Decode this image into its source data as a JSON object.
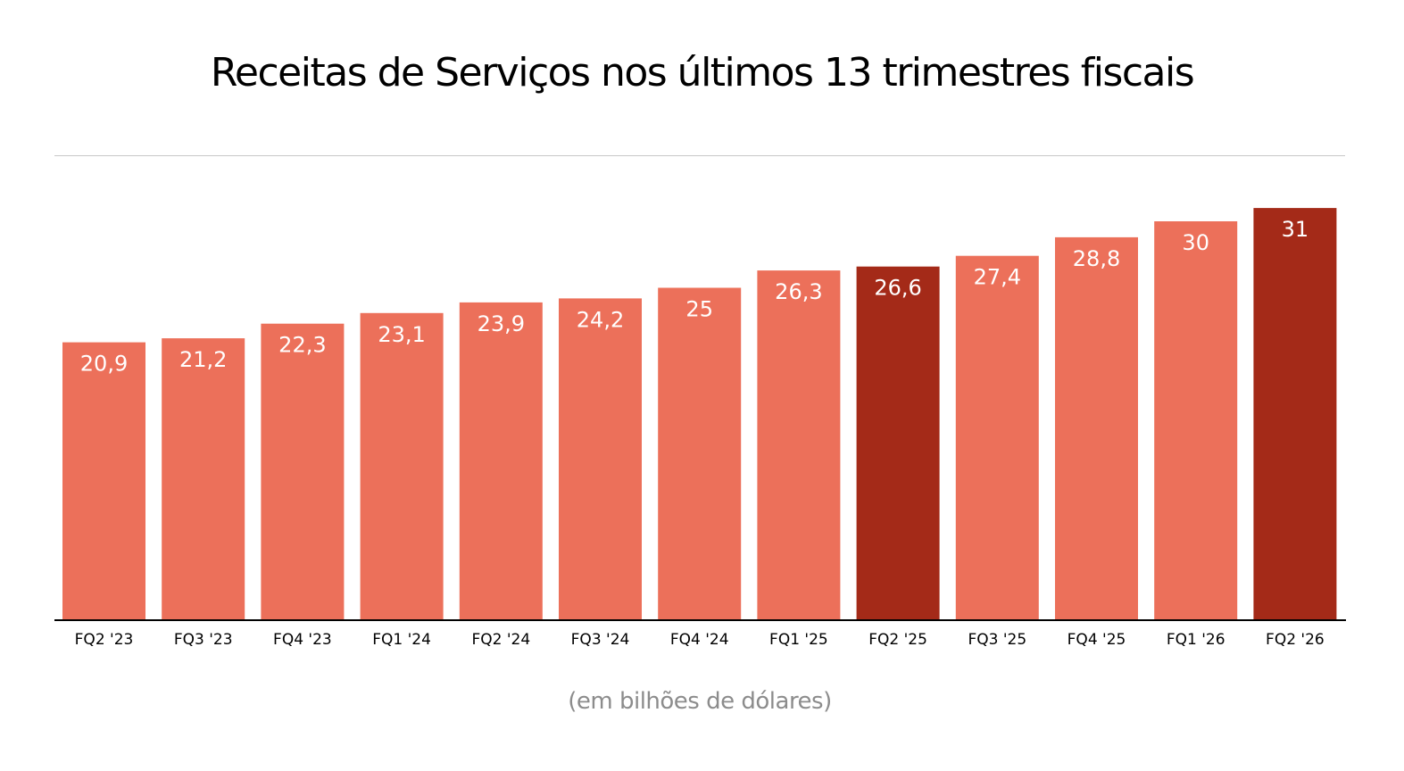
{
  "chart_data": {
    "type": "bar",
    "title": "Receitas de Serviços nos últimos 13 trimestres fiscais",
    "unit_note": "(em bilhões de dólares)",
    "categories": [
      "FQ2 '23",
      "FQ3 '23",
      "FQ4 '23",
      "FQ1 '24",
      "FQ2 '24",
      "FQ3 '24",
      "FQ4 '24",
      "FQ1 '25",
      "FQ2 '25",
      "FQ3 '25",
      "FQ4 '25",
      "FQ1 '26",
      "FQ2 '26"
    ],
    "values": [
      20.9,
      21.2,
      22.3,
      23.1,
      23.9,
      24.2,
      25,
      26.3,
      26.6,
      27.4,
      28.8,
      30,
      31
    ],
    "value_labels": [
      "20,9",
      "21,2",
      "22,3",
      "23,1",
      "23,9",
      "24,2",
      "25",
      "26,3",
      "26,6",
      "27,4",
      "28,8",
      "30",
      "31"
    ],
    "highlighted": [
      "FQ2 '25",
      "FQ2 '26"
    ],
    "ylim": [
      0,
      31
    ],
    "grid": false,
    "legend": "none",
    "colors": {
      "bar": "#EC705A",
      "highlight": "#A42A18",
      "label": "#FFFFFF",
      "axis": "#000000"
    }
  }
}
